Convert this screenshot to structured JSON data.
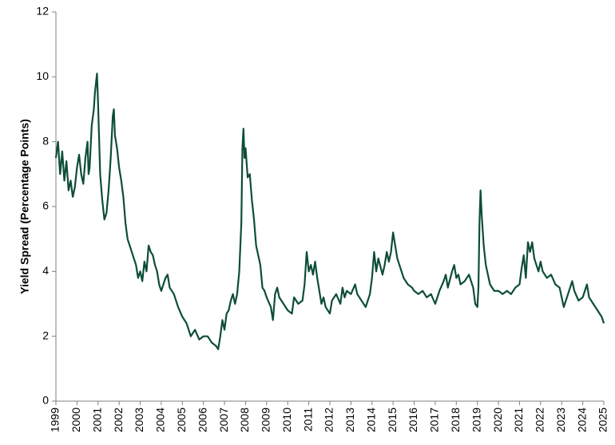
{
  "chart_data": {
    "type": "line",
    "y_label": "Yield Spread (Percentage Points)",
    "xlim": [
      1999,
      2025
    ],
    "xticks": [
      1999,
      2000,
      2001,
      2002,
      2003,
      2004,
      2005,
      2006,
      2007,
      2008,
      2009,
      2010,
      2011,
      2012,
      2013,
      2014,
      2015,
      2016,
      2017,
      2018,
      2019,
      2020,
      2021,
      2022,
      2023,
      2024,
      2025
    ],
    "ylim": [
      0,
      12
    ],
    "yticks": [
      0,
      2,
      4,
      6,
      8,
      10,
      12
    ],
    "grid": false,
    "series": [
      {
        "color": "#0d4d3a",
        "x": [
          1999.0,
          1999.1,
          1999.2,
          1999.3,
          1999.4,
          1999.5,
          1999.6,
          1999.7,
          1999.8,
          1999.9,
          2000.0,
          2000.1,
          2000.2,
          2000.3,
          2000.4,
          2000.5,
          2000.55,
          2000.6,
          2000.7,
          2000.8,
          2000.85,
          2000.9,
          2000.95,
          2001.0,
          2001.1,
          2001.2,
          2001.3,
          2001.4,
          2001.5,
          2001.6,
          2001.7,
          2001.75,
          2001.8,
          2001.9,
          2002.0,
          2002.1,
          2002.2,
          2002.3,
          2002.4,
          2002.5,
          2002.6,
          2002.7,
          2002.8,
          2002.9,
          2003.0,
          2003.1,
          2003.2,
          2003.3,
          2003.4,
          2003.5,
          2003.6,
          2003.7,
          2003.8,
          2003.9,
          2004.0,
          2004.2,
          2004.3,
          2004.4,
          2004.6,
          2004.8,
          2005.0,
          2005.2,
          2005.4,
          2005.6,
          2005.8,
          2006.0,
          2006.2,
          2006.4,
          2006.6,
          2006.7,
          2006.8,
          2006.9,
          2007.0,
          2007.1,
          2007.2,
          2007.3,
          2007.4,
          2007.5,
          2007.6,
          2007.7,
          2007.8,
          2007.85,
          2007.9,
          2007.95,
          2008.0,
          2008.1,
          2008.2,
          2008.3,
          2008.4,
          2008.5,
          2008.6,
          2008.7,
          2008.8,
          2008.9,
          2009.0,
          2009.2,
          2009.3,
          2009.4,
          2009.5,
          2009.6,
          2009.8,
          2010.0,
          2010.2,
          2010.3,
          2010.5,
          2010.7,
          2010.8,
          2010.9,
          2011.0,
          2011.1,
          2011.2,
          2011.3,
          2011.4,
          2011.5,
          2011.6,
          2011.7,
          2011.8,
          2012.0,
          2012.1,
          2012.3,
          2012.5,
          2012.6,
          2012.7,
          2012.8,
          2013.0,
          2013.2,
          2013.3,
          2013.5,
          2013.7,
          2013.9,
          2014.0,
          2014.1,
          2014.2,
          2014.3,
          2014.5,
          2014.6,
          2014.7,
          2014.8,
          2014.9,
          2015.0,
          2015.1,
          2015.2,
          2015.3,
          2015.5,
          2015.7,
          2015.9,
          2016.0,
          2016.2,
          2016.4,
          2016.6,
          2016.8,
          2017.0,
          2017.2,
          2017.4,
          2017.5,
          2017.6,
          2017.8,
          2017.9,
          2018.0,
          2018.1,
          2018.2,
          2018.4,
          2018.6,
          2018.8,
          2018.9,
          2019.0,
          2019.05,
          2019.1,
          2019.15,
          2019.2,
          2019.3,
          2019.4,
          2019.5,
          2019.6,
          2019.8,
          2020.0,
          2020.2,
          2020.4,
          2020.6,
          2020.8,
          2021.0,
          2021.1,
          2021.2,
          2021.3,
          2021.4,
          2021.5,
          2021.6,
          2021.7,
          2021.9,
          2022.0,
          2022.1,
          2022.3,
          2022.5,
          2022.7,
          2022.9,
          2023.0,
          2023.1,
          2023.3,
          2023.5,
          2023.6,
          2023.8,
          2024.0,
          2024.2,
          2024.3,
          2024.5,
          2024.7,
          2024.9,
          2025.0
        ],
        "values": [
          7.5,
          8.0,
          7.0,
          7.7,
          6.8,
          7.4,
          6.5,
          6.8,
          6.3,
          6.6,
          7.2,
          7.6,
          7.0,
          6.7,
          7.5,
          8.0,
          7.0,
          7.2,
          8.5,
          9.0,
          9.5,
          9.8,
          10.1,
          9.2,
          7.0,
          6.2,
          5.6,
          5.8,
          6.5,
          7.5,
          8.8,
          9.0,
          8.2,
          7.8,
          7.2,
          6.8,
          6.3,
          5.5,
          5.0,
          4.8,
          4.6,
          4.4,
          4.2,
          3.8,
          4.0,
          3.7,
          4.3,
          4.0,
          4.8,
          4.6,
          4.5,
          4.2,
          4.0,
          3.6,
          3.4,
          3.8,
          3.9,
          3.5,
          3.3,
          2.9,
          2.6,
          2.4,
          2.0,
          2.2,
          1.9,
          2.0,
          2.0,
          1.8,
          1.7,
          1.6,
          2.0,
          2.5,
          2.2,
          2.7,
          2.8,
          3.1,
          3.3,
          3.0,
          3.3,
          4.0,
          5.5,
          7.8,
          8.4,
          7.5,
          7.8,
          6.9,
          7.0,
          6.2,
          5.6,
          4.8,
          4.5,
          4.2,
          3.5,
          3.4,
          3.2,
          2.9,
          2.5,
          3.3,
          3.5,
          3.2,
          3.0,
          2.8,
          2.7,
          3.2,
          3.0,
          3.1,
          3.6,
          4.6,
          4.0,
          4.2,
          3.9,
          4.3,
          3.8,
          3.4,
          3.0,
          3.2,
          2.9,
          2.7,
          3.1,
          3.3,
          3.0,
          3.5,
          3.2,
          3.4,
          3.3,
          3.6,
          3.3,
          3.1,
          2.9,
          3.3,
          3.8,
          4.6,
          4.0,
          4.4,
          3.9,
          4.2,
          4.6,
          4.3,
          4.6,
          5.2,
          4.8,
          4.4,
          4.2,
          3.8,
          3.6,
          3.5,
          3.4,
          3.3,
          3.4,
          3.2,
          3.3,
          3.0,
          3.4,
          3.7,
          3.9,
          3.5,
          4.0,
          4.2,
          3.8,
          3.9,
          3.6,
          3.7,
          3.9,
          3.5,
          3.0,
          2.9,
          3.5,
          5.5,
          6.5,
          5.8,
          4.8,
          4.2,
          3.9,
          3.6,
          3.4,
          3.4,
          3.3,
          3.4,
          3.3,
          3.5,
          3.6,
          4.1,
          4.5,
          3.8,
          4.9,
          4.6,
          4.9,
          4.4,
          4.0,
          4.3,
          4.0,
          3.8,
          3.9,
          3.6,
          3.5,
          3.2,
          2.9,
          3.3,
          3.7,
          3.4,
          3.1,
          3.2,
          3.6,
          3.2,
          3.0,
          2.8,
          2.6,
          2.4
        ]
      }
    ]
  }
}
